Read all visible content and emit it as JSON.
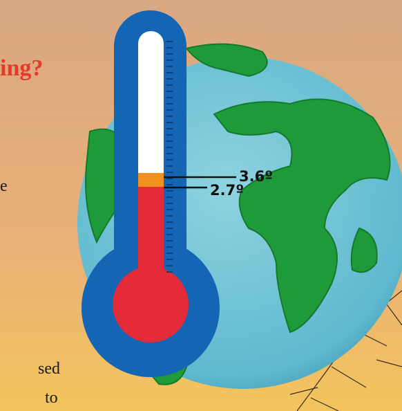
{
  "heading": "ing?",
  "body_fragments": [
    "e",
    "sed",
    "to"
  ],
  "thermometer": {
    "labels": [
      "3.6º",
      "2.7º"
    ]
  }
}
